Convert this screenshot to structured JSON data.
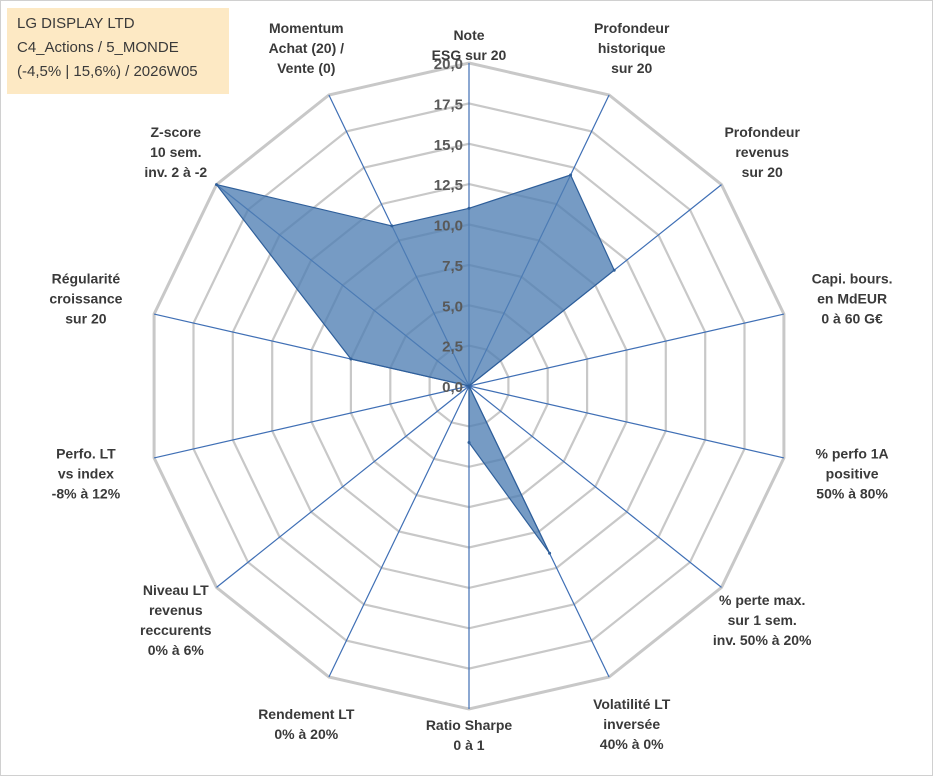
{
  "info_box": {
    "line1": "LG DISPLAY LTD",
    "line2": "C4_Actions / 5_MONDE",
    "line3": "(-4,5% | 15,6%) / 2026W05"
  },
  "colors": {
    "grid": "#c8c8c8",
    "spoke": "#3f6fb5",
    "area_fill": "#4f7fb4",
    "area_stroke": "#2f5f9a",
    "info_bg": "#fde9c4"
  },
  "chart_data": {
    "type": "radar",
    "title": "",
    "r_min": 0,
    "r_max": 20,
    "r_step": 2.5,
    "tick_labels": [
      "0,0",
      "2,5",
      "5,0",
      "7,5",
      "10,0",
      "12,5",
      "15,0",
      "17,5",
      "20,0"
    ],
    "axes": [
      {
        "label_lines": [
          "Note",
          "ESG sur 20"
        ],
        "value": 11.0
      },
      {
        "label_lines": [
          "Profondeur",
          "historique",
          "sur 20"
        ],
        "value": 14.5
      },
      {
        "label_lines": [
          "Profondeur",
          "revenus",
          "sur 20"
        ],
        "value": 11.5
      },
      {
        "label_lines": [
          "Capi. bours.",
          "en MdEUR",
          "0 à 60 G€"
        ],
        "value": 0.0
      },
      {
        "label_lines": [
          "% perfo 1A",
          "positive",
          "50% à 80%"
        ],
        "value": 0.0
      },
      {
        "label_lines": [
          "% perte max.",
          "sur 1 sem.",
          "inv. 50% à 20%"
        ],
        "value": 0.0
      },
      {
        "label_lines": [
          "Volatilité LT",
          "inversée",
          "40% à 0%"
        ],
        "value": 11.5
      },
      {
        "label_lines": [
          "Ratio Sharpe",
          "0 à 1"
        ],
        "value": 3.5
      },
      {
        "label_lines": [
          "Rendement LT",
          "0% à 20%"
        ],
        "value": 0.0
      },
      {
        "label_lines": [
          "Niveau LT",
          "revenus",
          "reccurents",
          "0% à 6%"
        ],
        "value": 0.0
      },
      {
        "label_lines": [
          "Perfo. LT",
          "vs index",
          "-8% à 12%"
        ],
        "value": 0.0
      },
      {
        "label_lines": [
          "Régularité",
          "croissance",
          "sur 20"
        ],
        "value": 7.5
      },
      {
        "label_lines": [
          "Z-score",
          "10 sem.",
          "inv. 2 à -2"
        ],
        "value": 20.0
      },
      {
        "label_lines": [
          "Momentum",
          "Achat (20) /",
          "Vente (0)"
        ],
        "value": 11.0
      }
    ]
  }
}
